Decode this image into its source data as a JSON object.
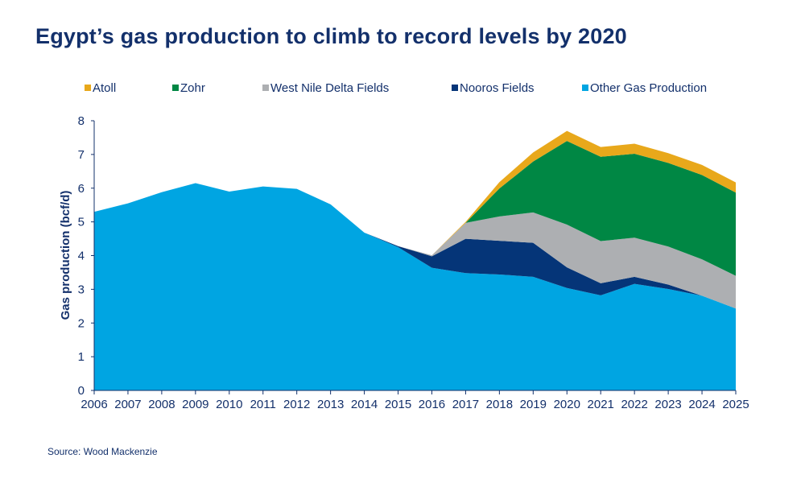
{
  "title": "Egypt’s gas production to climb to record levels by 2020",
  "source": "Source: Wood Mackenzie",
  "chart_data": {
    "type": "area",
    "stacked": true,
    "ylabel": "Gas production (bcf/d)",
    "xlabel": "",
    "ylim": [
      0,
      8
    ],
    "yticks": [
      0,
      1,
      2,
      3,
      4,
      5,
      6,
      7,
      8
    ],
    "grid": false,
    "legend_position": "top",
    "categories": [
      "2006",
      "2007",
      "2008",
      "2009",
      "2010",
      "2011",
      "2012",
      "2013",
      "2014",
      "2015",
      "2016",
      "2017",
      "2018",
      "2019",
      "2020",
      "2021",
      "2022",
      "2023",
      "2024",
      "2025"
    ],
    "series": [
      {
        "name": "Other Gas Production",
        "color": "#00a5e2",
        "values": [
          5.3,
          5.55,
          5.88,
          6.15,
          5.9,
          6.05,
          5.98,
          5.52,
          4.68,
          4.25,
          3.64,
          3.48,
          3.44,
          3.37,
          3.04,
          2.82,
          3.16,
          3.01,
          2.81,
          2.43
        ]
      },
      {
        "name": "Nooros Fields",
        "color": "#053578",
        "values": [
          0,
          0,
          0,
          0,
          0,
          0,
          0,
          0,
          0,
          0.03,
          0.34,
          1.02,
          1.0,
          1.01,
          0.61,
          0.36,
          0.21,
          0.13,
          0,
          0
        ]
      },
      {
        "name": "West Nile Delta Fields",
        "color": "#adafb2",
        "values": [
          0,
          0,
          0,
          0,
          0,
          0,
          0,
          0,
          0,
          0,
          0.03,
          0.47,
          0.72,
          0.9,
          1.27,
          1.25,
          1.16,
          1.13,
          1.08,
          0.97
        ]
      },
      {
        "name": "Zohr",
        "color": "#008744",
        "values": [
          0,
          0,
          0,
          0,
          0,
          0,
          0,
          0,
          0,
          0,
          0,
          0,
          0.83,
          1.51,
          2.48,
          2.5,
          2.49,
          2.48,
          2.5,
          2.47
        ]
      },
      {
        "name": "Atoll",
        "color": "#e8a81b",
        "values": [
          0,
          0,
          0,
          0,
          0,
          0,
          0,
          0,
          0,
          0,
          0,
          0.03,
          0.19,
          0.27,
          0.3,
          0.29,
          0.3,
          0.29,
          0.3,
          0.3
        ]
      }
    ],
    "legend_order": [
      "Atoll",
      "Zohr",
      "West Nile Delta Fields",
      "Nooros Fields",
      "Other Gas Production"
    ]
  }
}
